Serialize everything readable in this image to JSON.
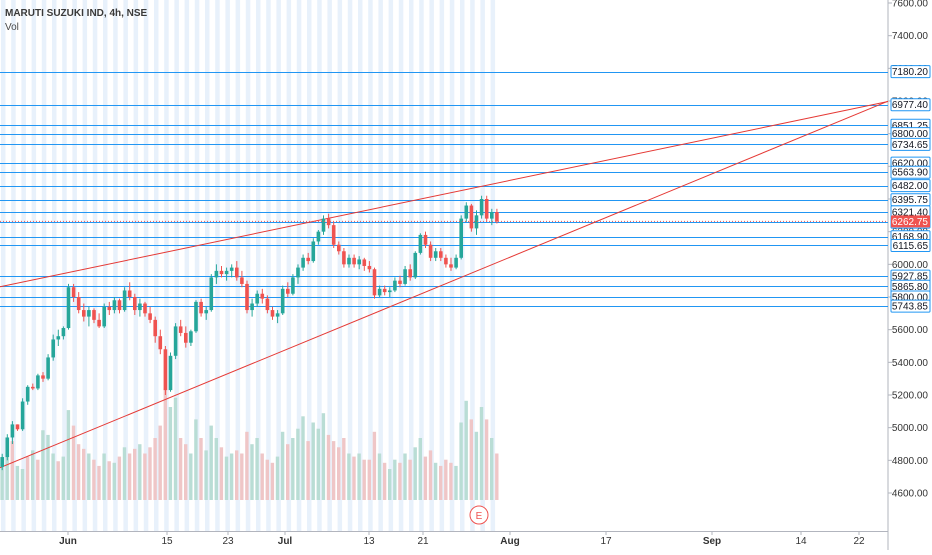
{
  "chart_data": {
    "type": "candlestick",
    "symbol_label": "MARUTI SUZUKI IND, 4h, NSE",
    "volume_label": "Vol",
    "earnings_marker": "E",
    "colors": {
      "up": "#26a69a",
      "down": "#ef5350",
      "level_line": "#2196f3",
      "trend_line": "#e53935",
      "volume_up": "#b9ddd5",
      "volume_down": "#efc6c7",
      "session_band": "#e8f1fb",
      "price_tag_bg": "#2196f3",
      "last_price_bg": "#ef5350",
      "earnings": "#ef5350"
    },
    "y_axis": {
      "ticks": [
        "7600.00",
        "7400.00",
        "7200.00",
        "7000.00",
        "6800.00",
        "6600.00",
        "6400.00",
        "6200.00",
        "6000.00",
        "5800.00",
        "5600.00",
        "5400.00",
        "5200.00",
        "5000.00",
        "4800.00",
        "4600.00"
      ],
      "range": [
        4490,
        7620
      ]
    },
    "x_axis": {
      "ticks": [
        {
          "label": "Jun",
          "bold": true
        },
        {
          "label": "15",
          "bold": false
        },
        {
          "label": "23",
          "bold": false
        },
        {
          "label": "Jul",
          "bold": true
        },
        {
          "label": "13",
          "bold": false
        },
        {
          "label": "21",
          "bold": false
        },
        {
          "label": "Aug",
          "bold": true
        },
        {
          "label": "17",
          "bold": false
        },
        {
          "label": "Sep",
          "bold": true
        },
        {
          "label": "14",
          "bold": false
        },
        {
          "label": "22",
          "bold": false
        }
      ]
    },
    "horizontal_levels": [
      {
        "label": "7180.20",
        "value": 7180.2
      },
      {
        "label": "6977.40",
        "value": 6977.4
      },
      {
        "label": "6851.25",
        "value": 6851.25
      },
      {
        "label": "6800.00",
        "value": 6800.0
      },
      {
        "label": "6734.65",
        "value": 6734.65
      },
      {
        "label": "6620.00",
        "value": 6620.0
      },
      {
        "label": "6563.90",
        "value": 6563.9
      },
      {
        "label": "6482.00",
        "value": 6482.0
      },
      {
        "label": "6395.75",
        "value": 6395.75
      },
      {
        "label": "6321.40",
        "value": 6321.4
      },
      {
        "label": "6258.65",
        "value": 6258.65
      },
      {
        "label": "6168.90",
        "value": 6168.9
      },
      {
        "label": "6115.65",
        "value": 6115.65
      },
      {
        "label": "5927.85",
        "value": 5927.85
      },
      {
        "label": "5865.80",
        "value": 5865.8
      },
      {
        "label": "5800.00",
        "value": 5800.0
      },
      {
        "label": "5743.85",
        "value": 5743.85
      }
    ],
    "last_price": {
      "label": "6262.75",
      "value": 6262.75
    },
    "candles_ohlc": [
      [
        4760,
        4840,
        4740,
        4820
      ],
      [
        4820,
        4960,
        4800,
        4940
      ],
      [
        4940,
        5040,
        4900,
        5020
      ],
      [
        5020,
        5020,
        4980,
        4990
      ],
      [
        4990,
        5180,
        4980,
        5160
      ],
      [
        5160,
        5260,
        5140,
        5250
      ],
      [
        5250,
        5270,
        5230,
        5240
      ],
      [
        5240,
        5330,
        5230,
        5320
      ],
      [
        5320,
        5340,
        5280,
        5300
      ],
      [
        5300,
        5450,
        5290,
        5430
      ],
      [
        5430,
        5570,
        5410,
        5540
      ],
      [
        5540,
        5600,
        5500,
        5560
      ],
      [
        5560,
        5620,
        5540,
        5610
      ],
      [
        5610,
        5880,
        5600,
        5860
      ],
      [
        5860,
        5880,
        5770,
        5800
      ],
      [
        5800,
        5830,
        5700,
        5720
      ],
      [
        5720,
        5760,
        5650,
        5680
      ],
      [
        5680,
        5740,
        5620,
        5720
      ],
      [
        5720,
        5730,
        5640,
        5660
      ],
      [
        5660,
        5700,
        5610,
        5620
      ],
      [
        5620,
        5760,
        5610,
        5740
      ],
      [
        5740,
        5770,
        5690,
        5720
      ],
      [
        5720,
        5800,
        5700,
        5780
      ],
      [
        5780,
        5790,
        5700,
        5720
      ],
      [
        5720,
        5860,
        5710,
        5840
      ],
      [
        5840,
        5890,
        5780,
        5800
      ],
      [
        5800,
        5820,
        5690,
        5720
      ],
      [
        5720,
        5790,
        5680,
        5760
      ],
      [
        5760,
        5770,
        5680,
        5700
      ],
      [
        5700,
        5740,
        5640,
        5660
      ],
      [
        5660,
        5680,
        5520,
        5560
      ],
      [
        5560,
        5600,
        5450,
        5480
      ],
      [
        5480,
        5500,
        5200,
        5230
      ],
      [
        5230,
        5460,
        5220,
        5440
      ],
      [
        5440,
        5640,
        5420,
        5620
      ],
      [
        5620,
        5660,
        5560,
        5580
      ],
      [
        5580,
        5620,
        5490,
        5520
      ],
      [
        5520,
        5600,
        5500,
        5590
      ],
      [
        5590,
        5780,
        5580,
        5770
      ],
      [
        5770,
        5790,
        5680,
        5700
      ],
      [
        5700,
        5740,
        5660,
        5720
      ],
      [
        5720,
        5940,
        5710,
        5920
      ],
      [
        5920,
        6000,
        5880,
        5960
      ],
      [
        5960,
        5990,
        5920,
        5940
      ],
      [
        5940,
        5980,
        5900,
        5960
      ],
      [
        5960,
        6000,
        5920,
        5980
      ],
      [
        5980,
        6020,
        5900,
        5920
      ],
      [
        5920,
        5960,
        5860,
        5880
      ],
      [
        5880,
        5900,
        5700,
        5720
      ],
      [
        5720,
        5790,
        5680,
        5760
      ],
      [
        5760,
        5840,
        5740,
        5820
      ],
      [
        5820,
        5850,
        5760,
        5790
      ],
      [
        5790,
        5810,
        5700,
        5720
      ],
      [
        5720,
        5740,
        5660,
        5680
      ],
      [
        5680,
        5720,
        5640,
        5700
      ],
      [
        5700,
        5870,
        5690,
        5850
      ],
      [
        5850,
        5890,
        5800,
        5820
      ],
      [
        5820,
        5940,
        5810,
        5920
      ],
      [
        5920,
        6000,
        5880,
        5980
      ],
      [
        5980,
        6060,
        5960,
        6040
      ],
      [
        6040,
        6070,
        6000,
        6020
      ],
      [
        6020,
        6160,
        6010,
        6140
      ],
      [
        6140,
        6210,
        6120,
        6200
      ],
      [
        6200,
        6300,
        6180,
        6280
      ],
      [
        6280,
        6310,
        6220,
        6240
      ],
      [
        6240,
        6260,
        6100,
        6120
      ],
      [
        6120,
        6140,
        6060,
        6080
      ],
      [
        6080,
        6100,
        5980,
        6000
      ],
      [
        6000,
        6060,
        5980,
        6040
      ],
      [
        6040,
        6060,
        5980,
        6000
      ],
      [
        6000,
        6050,
        5970,
        6030
      ],
      [
        6030,
        6040,
        5960,
        5990
      ],
      [
        5990,
        6020,
        5950,
        5970
      ],
      [
        5970,
        5980,
        5790,
        5810
      ],
      [
        5810,
        5870,
        5800,
        5850
      ],
      [
        5850,
        5870,
        5810,
        5830
      ],
      [
        5830,
        5860,
        5800,
        5840
      ],
      [
        5840,
        5920,
        5830,
        5900
      ],
      [
        5900,
        5930,
        5860,
        5880
      ],
      [
        5880,
        5990,
        5870,
        5970
      ],
      [
        5970,
        6000,
        5900,
        5920
      ],
      [
        5920,
        6080,
        5910,
        6070
      ],
      [
        6070,
        6190,
        6060,
        6180
      ],
      [
        6180,
        6200,
        6100,
        6120
      ],
      [
        6120,
        6140,
        6020,
        6040
      ],
      [
        6040,
        6100,
        6020,
        6080
      ],
      [
        6080,
        6100,
        6020,
        6040
      ],
      [
        6040,
        6060,
        5980,
        6000
      ],
      [
        6000,
        6040,
        5960,
        5980
      ],
      [
        5980,
        6060,
        5970,
        6040
      ],
      [
        6040,
        6300,
        6030,
        6280
      ],
      [
        6280,
        6380,
        6260,
        6360
      ],
      [
        6360,
        6370,
        6200,
        6220
      ],
      [
        6220,
        6330,
        6180,
        6300
      ],
      [
        6300,
        6420,
        6280,
        6400
      ],
      [
        6400,
        6420,
        6260,
        6280
      ],
      [
        6280,
        6340,
        6240,
        6320
      ],
      [
        6320,
        6340,
        6250,
        6262.75
      ]
    ],
    "volume": [
      [
        24,
        1
      ],
      [
        30,
        1
      ],
      [
        38,
        0
      ],
      [
        22,
        1
      ],
      [
        20,
        1
      ],
      [
        28,
        0
      ],
      [
        32,
        1
      ],
      [
        26,
        0
      ],
      [
        45,
        1
      ],
      [
        42,
        1
      ],
      [
        30,
        1
      ],
      [
        25,
        0
      ],
      [
        28,
        1
      ],
      [
        58,
        1
      ],
      [
        48,
        0
      ],
      [
        36,
        0
      ],
      [
        33,
        0
      ],
      [
        30,
        1
      ],
      [
        26,
        0
      ],
      [
        22,
        0
      ],
      [
        30,
        1
      ],
      [
        25,
        0
      ],
      [
        24,
        1
      ],
      [
        28,
        0
      ],
      [
        34,
        1
      ],
      [
        30,
        0
      ],
      [
        33,
        0
      ],
      [
        36,
        1
      ],
      [
        30,
        0
      ],
      [
        34,
        0
      ],
      [
        40,
        0
      ],
      [
        48,
        0
      ],
      [
        72,
        0
      ],
      [
        60,
        1
      ],
      [
        66,
        1
      ],
      [
        40,
        0
      ],
      [
        36,
        0
      ],
      [
        30,
        1
      ],
      [
        52,
        1
      ],
      [
        40,
        0
      ],
      [
        32,
        1
      ],
      [
        48,
        1
      ],
      [
        40,
        1
      ],
      [
        34,
        0
      ],
      [
        28,
        1
      ],
      [
        30,
        1
      ],
      [
        32,
        0
      ],
      [
        30,
        0
      ],
      [
        44,
        0
      ],
      [
        36,
        1
      ],
      [
        40,
        1
      ],
      [
        30,
        0
      ],
      [
        26,
        0
      ],
      [
        24,
        0
      ],
      [
        28,
        1
      ],
      [
        44,
        1
      ],
      [
        36,
        0
      ],
      [
        40,
        1
      ],
      [
        46,
        1
      ],
      [
        54,
        1
      ],
      [
        38,
        0
      ],
      [
        50,
        1
      ],
      [
        46,
        1
      ],
      [
        56,
        1
      ],
      [
        42,
        0
      ],
      [
        38,
        0
      ],
      [
        34,
        0
      ],
      [
        40,
        0
      ],
      [
        30,
        1
      ],
      [
        28,
        0
      ],
      [
        30,
        1
      ],
      [
        26,
        0
      ],
      [
        26,
        0
      ],
      [
        44,
        0
      ],
      [
        30,
        1
      ],
      [
        24,
        0
      ],
      [
        20,
        1
      ],
      [
        26,
        1
      ],
      [
        24,
        0
      ],
      [
        30,
        1
      ],
      [
        26,
        0
      ],
      [
        34,
        1
      ],
      [
        40,
        1
      ],
      [
        28,
        0
      ],
      [
        32,
        0
      ],
      [
        24,
        1
      ],
      [
        22,
        0
      ],
      [
        26,
        0
      ],
      [
        24,
        0
      ],
      [
        22,
        1
      ],
      [
        50,
        1
      ],
      [
        64,
        1
      ],
      [
        52,
        0
      ],
      [
        44,
        1
      ],
      [
        60,
        1
      ],
      [
        52,
        0
      ],
      [
        40,
        1
      ],
      [
        30,
        0
      ]
    ]
  }
}
